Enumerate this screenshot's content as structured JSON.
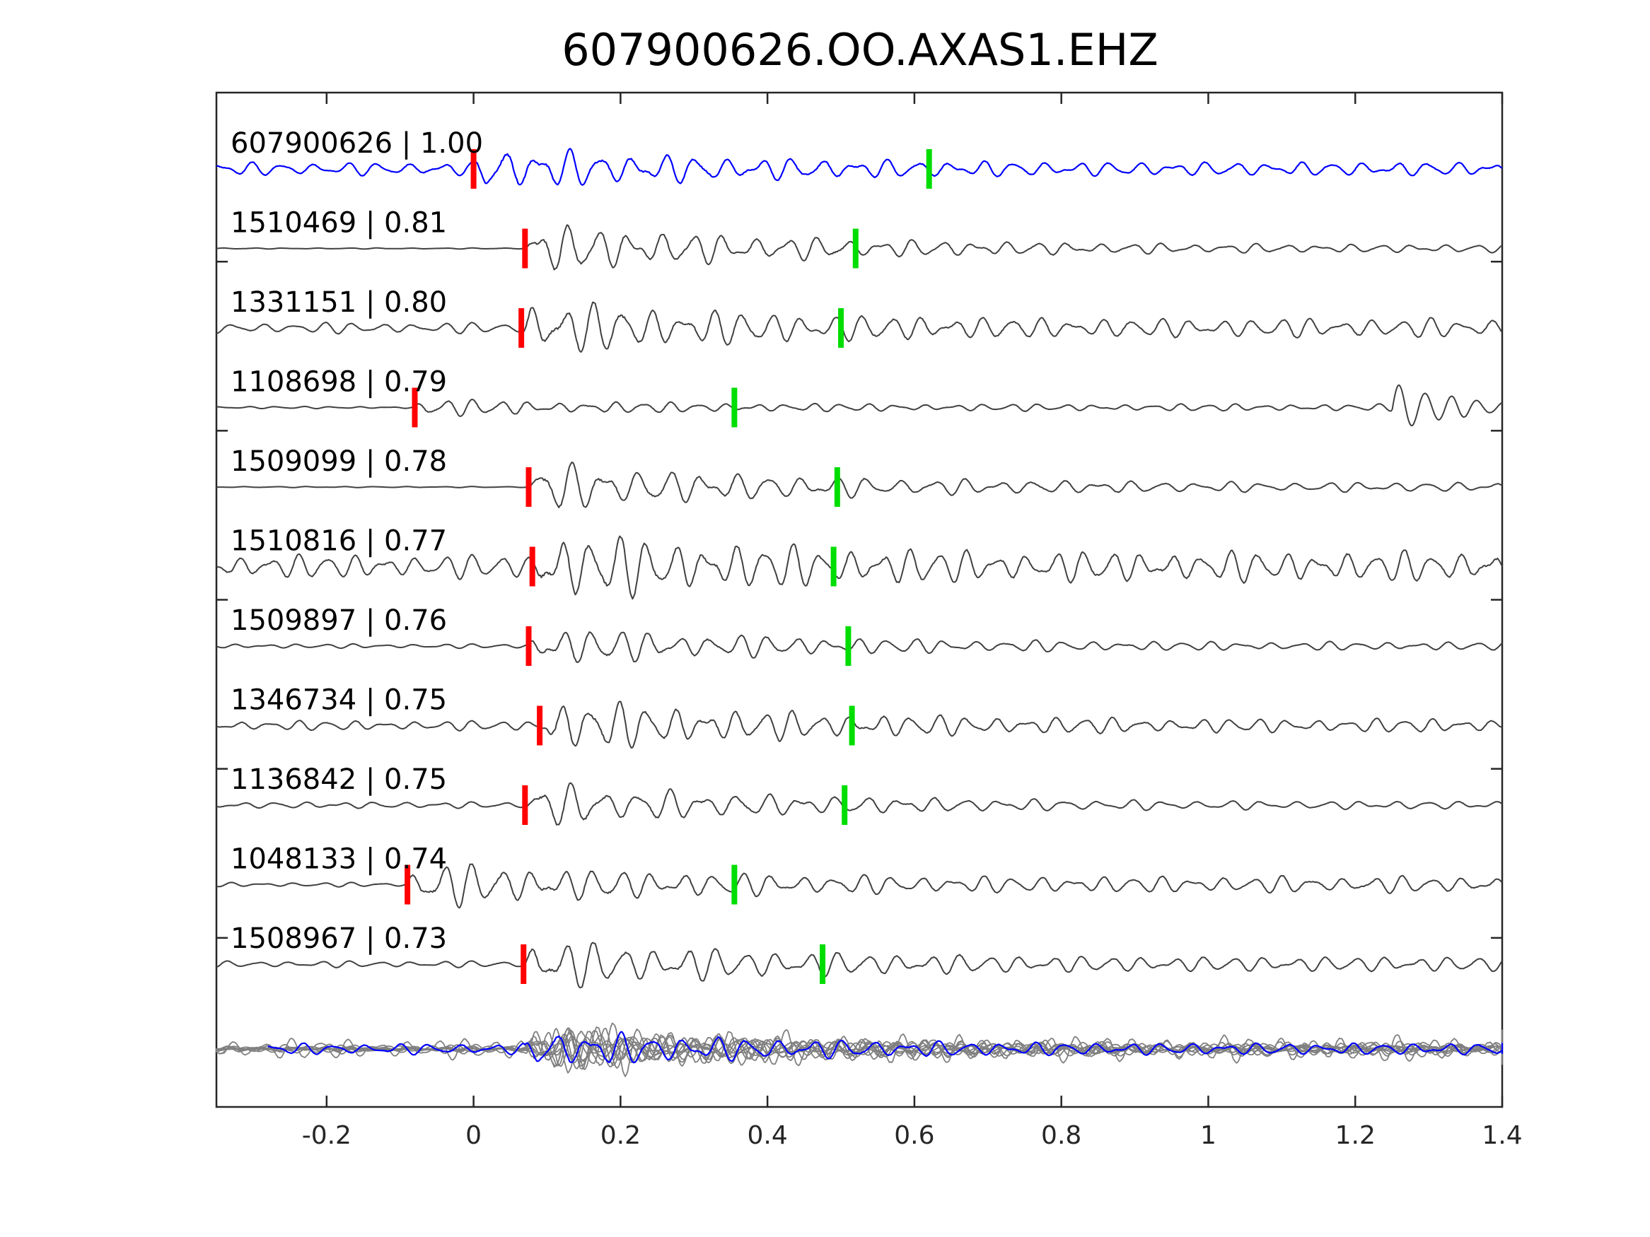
{
  "chart_data": {
    "type": "line",
    "title": "607900626.OO.AXAS1.EHZ",
    "xlabel": "",
    "ylabel": "",
    "xlim": [
      -0.35,
      1.4
    ],
    "xticks": [
      -0.2,
      0,
      0.2,
      0.4,
      0.6,
      0.8,
      1,
      1.2,
      1.4
    ],
    "xtick_labels": [
      "-0.2",
      "0",
      "0.2",
      "0.4",
      "0.6",
      "0.8",
      "1",
      "1.2",
      "1.4"
    ],
    "grid": false,
    "colors": {
      "target_trace": "#0000ff",
      "neighbor_trace": "#404040",
      "stack_trace": "#808080",
      "p_pick": "#ff0000",
      "s_pick": "#00dd00"
    },
    "series": [
      {
        "label": "607900626 | 1.00",
        "p_pick": 0.0,
        "s_pick": 0.62,
        "highlight": true,
        "pre_noise": 0.12,
        "amp": 0.36,
        "noise": 0.1,
        "seed": 11,
        "late_burst": null
      },
      {
        "label": "1510469 | 0.81",
        "p_pick": 0.07,
        "s_pick": 0.52,
        "highlight": false,
        "pre_noise": 0.01,
        "amp": 0.45,
        "noise": 0.06,
        "seed": 23,
        "late_burst": null
      },
      {
        "label": "1331151 | 0.80",
        "p_pick": 0.065,
        "s_pick": 0.5,
        "highlight": false,
        "pre_noise": 0.1,
        "amp": 0.42,
        "noise": 0.14,
        "seed": 37,
        "late_burst": null
      },
      {
        "label": "1108698 | 0.79",
        "p_pick": -0.08,
        "s_pick": 0.355,
        "highlight": false,
        "pre_noise": 0.02,
        "amp": 0.12,
        "noise": 0.05,
        "seed": 41,
        "late_burst": 1.25
      },
      {
        "label": "1509099 | 0.78",
        "p_pick": 0.075,
        "s_pick": 0.495,
        "highlight": false,
        "pre_noise": 0.01,
        "amp": 0.42,
        "noise": 0.07,
        "seed": 53,
        "late_burst": null
      },
      {
        "label": "1510816 | 0.77",
        "p_pick": 0.08,
        "s_pick": 0.49,
        "highlight": false,
        "pre_noise": 0.22,
        "amp": 0.48,
        "noise": 0.22,
        "seed": 61,
        "late_burst": null
      },
      {
        "label": "1509897 | 0.76",
        "p_pick": 0.075,
        "s_pick": 0.51,
        "highlight": false,
        "pre_noise": 0.04,
        "amp": 0.34,
        "noise": 0.06,
        "seed": 71,
        "late_burst": null
      },
      {
        "label": "1346734 | 0.75",
        "p_pick": 0.09,
        "s_pick": 0.515,
        "highlight": false,
        "pre_noise": 0.09,
        "amp": 0.44,
        "noise": 0.1,
        "seed": 83,
        "late_burst": null
      },
      {
        "label": "1136842 | 0.75",
        "p_pick": 0.07,
        "s_pick": 0.505,
        "highlight": false,
        "pre_noise": 0.06,
        "amp": 0.38,
        "noise": 0.06,
        "seed": 97,
        "late_burst": null
      },
      {
        "label": "1048133 | 0.74",
        "p_pick": -0.09,
        "s_pick": 0.355,
        "highlight": false,
        "pre_noise": 0.04,
        "amp": 0.35,
        "noise": 0.12,
        "seed": 103,
        "late_burst": null
      },
      {
        "label": "1508967 | 0.73",
        "p_pick": 0.068,
        "s_pick": 0.475,
        "highlight": false,
        "pre_noise": 0.06,
        "amp": 0.4,
        "noise": 0.11,
        "seed": 113,
        "late_burst": null
      }
    ],
    "stack": {
      "label": "",
      "description_visible": false
    }
  }
}
